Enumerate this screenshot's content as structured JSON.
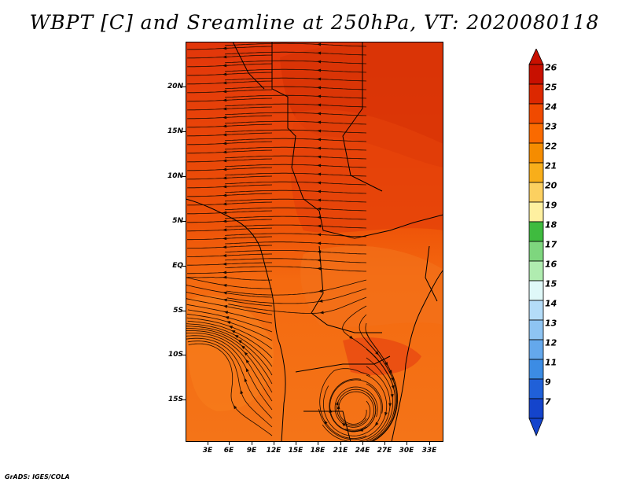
{
  "title": "WBPT [C] and Sreamline at 250hPa, VT: 2020080118",
  "credit": "GrADS: IGES/COLA",
  "lat_labels": [
    "20N",
    "15N",
    "10N",
    "5N",
    "EQ",
    "5S",
    "10S",
    "15S"
  ],
  "lon_labels": [
    "3E",
    "6E",
    "9E",
    "12E",
    "15E",
    "18E",
    "21E",
    "24E",
    "27E",
    "30E",
    "33E"
  ],
  "colorbar": {
    "labels": [
      "26",
      "25",
      "24",
      "23",
      "22",
      "21",
      "20",
      "19",
      "18",
      "17",
      "16",
      "15",
      "14",
      "13",
      "12",
      "11",
      "9",
      "7"
    ],
    "colors": [
      "#c81000",
      "#dc2800",
      "#f04a00",
      "#fa6a00",
      "#f58c00",
      "#f8ae1a",
      "#fcd060",
      "#fef0a0",
      "#3fbb3f",
      "#7ed67e",
      "#b0ecb0",
      "#dff8f8",
      "#b4dcf8",
      "#8ec4f2",
      "#64a8ec",
      "#3c8ce4",
      "#2060d8",
      "#1444cc"
    ]
  },
  "map": {
    "fill_colors": {
      "warm": "#f26a10",
      "hot": "#e8420a",
      "hottest": "#d42c00",
      "cool": "#f47a18"
    }
  }
}
